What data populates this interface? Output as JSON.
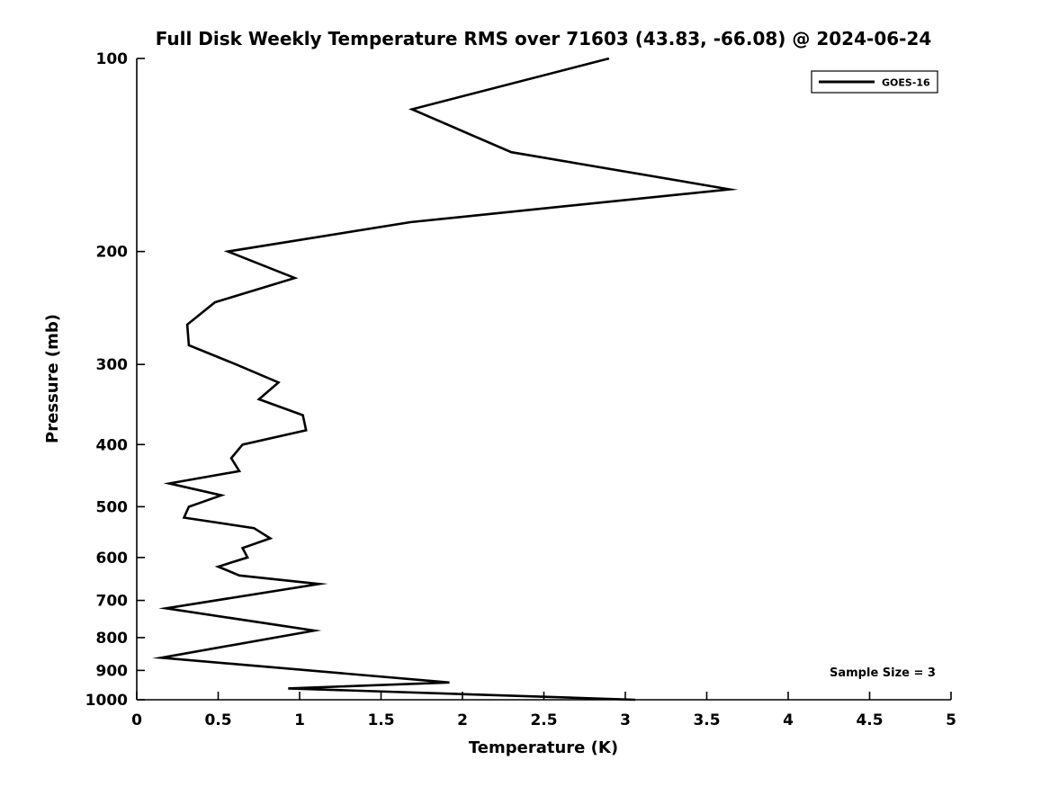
{
  "title": "Full Disk Weekly Temperature RMS over 71603 (43.83, -66.08) @ 2024-06-24",
  "chart_data": {
    "type": "line",
    "title": "Full Disk Weekly Temperature RMS over 71603 (43.83, -66.08) @ 2024-06-24",
    "xlabel": "Temperature (K)",
    "ylabel": "Pressure (mb)",
    "xlim": [
      0,
      5
    ],
    "ylim": [
      100,
      1000
    ],
    "y_scale": "log",
    "y_inverted": true,
    "grid": false,
    "background_color": "#ffffff",
    "line_color": "#000000",
    "x_ticks": [
      0,
      0.5,
      1,
      1.5,
      2,
      2.5,
      3,
      3.5,
      4,
      4.5,
      5
    ],
    "x_tick_labels": [
      "0",
      "0.5",
      "1",
      "1.5",
      "2",
      "2.5",
      "3",
      "3.5",
      "4",
      "4.5",
      "5"
    ],
    "y_ticks": [
      100,
      200,
      300,
      400,
      500,
      600,
      700,
      800,
      900,
      1000
    ],
    "y_tick_labels": [
      "100",
      "200",
      "300",
      "400",
      "500",
      "600",
      "700",
      "800",
      "900",
      "1000"
    ],
    "legend_position": "upper right",
    "series": [
      {
        "name": "GOES-16",
        "color": "#000000",
        "points": [
          {
            "pressure_mb": 100,
            "rms_k": 2.9
          },
          {
            "pressure_mb": 120,
            "rms_k": 1.69
          },
          {
            "pressure_mb": 140,
            "rms_k": 2.3
          },
          {
            "pressure_mb": 160,
            "rms_k": 3.64
          },
          {
            "pressure_mb": 180,
            "rms_k": 1.68
          },
          {
            "pressure_mb": 200,
            "rms_k": 0.56
          },
          {
            "pressure_mb": 220,
            "rms_k": 0.97
          },
          {
            "pressure_mb": 240,
            "rms_k": 0.48
          },
          {
            "pressure_mb": 260,
            "rms_k": 0.31
          },
          {
            "pressure_mb": 280,
            "rms_k": 0.32
          },
          {
            "pressure_mb": 300,
            "rms_k": 0.61
          },
          {
            "pressure_mb": 320,
            "rms_k": 0.87
          },
          {
            "pressure_mb": 340,
            "rms_k": 0.75
          },
          {
            "pressure_mb": 360,
            "rms_k": 1.02
          },
          {
            "pressure_mb": 380,
            "rms_k": 1.04
          },
          {
            "pressure_mb": 400,
            "rms_k": 0.65
          },
          {
            "pressure_mb": 420,
            "rms_k": 0.58
          },
          {
            "pressure_mb": 440,
            "rms_k": 0.63
          },
          {
            "pressure_mb": 460,
            "rms_k": 0.2
          },
          {
            "pressure_mb": 480,
            "rms_k": 0.52
          },
          {
            "pressure_mb": 500,
            "rms_k": 0.32
          },
          {
            "pressure_mb": 520,
            "rms_k": 0.29
          },
          {
            "pressure_mb": 540,
            "rms_k": 0.72
          },
          {
            "pressure_mb": 560,
            "rms_k": 0.82
          },
          {
            "pressure_mb": 580,
            "rms_k": 0.65
          },
          {
            "pressure_mb": 600,
            "rms_k": 0.68
          },
          {
            "pressure_mb": 620,
            "rms_k": 0.5
          },
          {
            "pressure_mb": 640,
            "rms_k": 0.63
          },
          {
            "pressure_mb": 660,
            "rms_k": 1.12
          },
          {
            "pressure_mb": 720,
            "rms_k": 0.18
          },
          {
            "pressure_mb": 780,
            "rms_k": 1.09
          },
          {
            "pressure_mb": 860,
            "rms_k": 0.15
          },
          {
            "pressure_mb": 940,
            "rms_k": 1.92
          },
          {
            "pressure_mb": 960,
            "rms_k": 0.93
          },
          {
            "pressure_mb": 1000,
            "rms_k": 3.06
          }
        ]
      }
    ],
    "annotations": [
      {
        "text": "Sample Size = 3",
        "position": "lower right"
      }
    ]
  }
}
